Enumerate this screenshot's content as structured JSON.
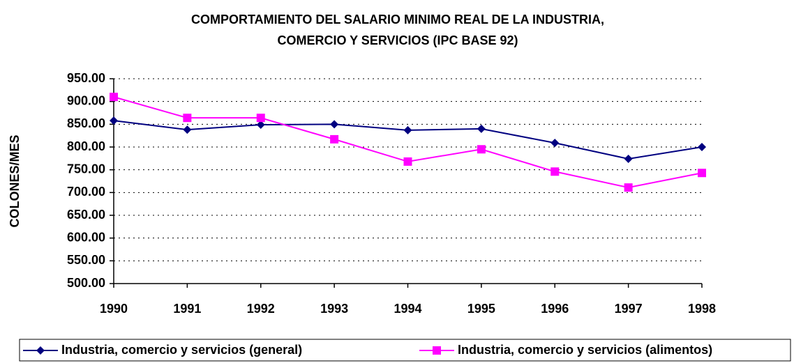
{
  "chart_data": {
    "type": "line",
    "title": "COMPORTAMIENTO DEL SALARIO MINIMO REAL DE LA INDUSTRIA,",
    "subtitle": "COMERCIO Y SERVICIOS (IPC BASE 92)",
    "y_label": "COLONES/MES",
    "categories": [
      "1990",
      "1991",
      "1992",
      "1993",
      "1994",
      "1995",
      "1996",
      "1997",
      "1998"
    ],
    "series": [
      {
        "name": "Industria, comercio y servicios (general)",
        "color": "#000080",
        "marker": "diamond",
        "values": [
          858,
          838,
          849,
          850,
          837,
          840,
          809,
          774,
          800
        ]
      },
      {
        "name": "Industria, comercio y servicios (alimentos)",
        "color": "#ff00ff",
        "marker": "square",
        "values": [
          910,
          864,
          864,
          817,
          768,
          795,
          746,
          711,
          743
        ]
      }
    ],
    "ylim": [
      500,
      950
    ],
    "yticks": [
      {
        "value": 500,
        "label": "500.00"
      },
      {
        "value": 550,
        "label": "550.00"
      },
      {
        "value": 600,
        "label": "600.00"
      },
      {
        "value": 650,
        "label": "650.00"
      },
      {
        "value": 700,
        "label": "700.00"
      },
      {
        "value": 750,
        "label": "750.00"
      },
      {
        "value": 800,
        "label": "800.00"
      },
      {
        "value": 850,
        "label": "850.00"
      },
      {
        "value": 900,
        "label": "900.00"
      },
      {
        "value": 950,
        "label": "950.00"
      }
    ],
    "grid": true,
    "legend": "bottom"
  }
}
